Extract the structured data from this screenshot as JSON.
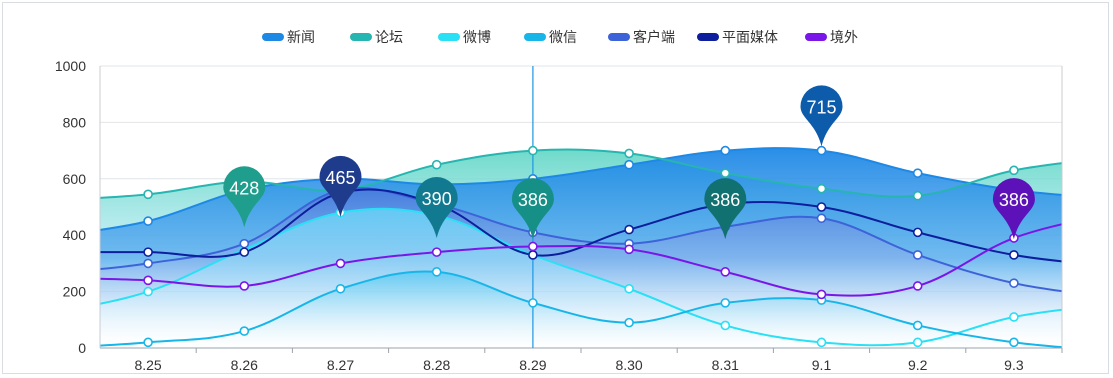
{
  "chart_data": {
    "type": "area",
    "categories": [
      "8.25",
      "8.26",
      "8.27",
      "8.28",
      "8.29",
      "8.30",
      "8.31",
      "9.1",
      "9.2",
      "9.3"
    ],
    "ylim": [
      0,
      1000
    ],
    "yticks": [
      0,
      200,
      400,
      600,
      800,
      1000
    ],
    "grid": true,
    "legend_position": "top-center",
    "highlight_category": "8.29",
    "series": [
      {
        "name": "新闻",
        "color": "#1e88e5",
        "values": [
          450,
          560,
          600,
          580,
          600,
          650,
          700,
          700,
          620,
          560
        ]
      },
      {
        "name": "论坛",
        "color": "#26b5b0",
        "values": [
          545,
          590,
          560,
          650,
          700,
          690,
          620,
          565,
          540,
          630
        ]
      },
      {
        "name": "微博",
        "color": "#29e0f5",
        "values": [
          200,
          350,
          480,
          470,
          330,
          210,
          80,
          20,
          20,
          110
        ]
      },
      {
        "name": "微信",
        "color": "#18b6e8",
        "values": [
          20,
          60,
          210,
          270,
          160,
          90,
          160,
          170,
          80,
          20
        ]
      },
      {
        "name": "客户端",
        "color": "#3d63d8",
        "values": [
          300,
          370,
          560,
          510,
          410,
          370,
          430,
          460,
          330,
          230
        ]
      },
      {
        "name": "平面媒体",
        "color": "#0d1f9c",
        "values": [
          340,
          340,
          550,
          510,
          330,
          420,
          510,
          500,
          410,
          330
        ]
      },
      {
        "name": "境外",
        "color": "#7a16e8",
        "values": [
          240,
          220,
          300,
          340,
          360,
          350,
          270,
          190,
          220,
          390
        ]
      }
    ],
    "markers": [
      {
        "category": "8.26",
        "value": 428,
        "label": "428",
        "color": "#1f9e8e"
      },
      {
        "category": "8.27",
        "value": 465,
        "label": "465",
        "color": "#1f3c8c"
      },
      {
        "category": "8.28",
        "value": 390,
        "label": "390",
        "color": "#117a90"
      },
      {
        "category": "8.29",
        "value": 386,
        "label": "386",
        "color": "#168f86"
      },
      {
        "category": "8.31",
        "value": 386,
        "label": "386",
        "color": "#117070"
      },
      {
        "category": "9.1",
        "value": 715,
        "label": "715",
        "color": "#0d5bab"
      },
      {
        "category": "9.3",
        "value": 386,
        "label": "386",
        "color": "#5c12b8"
      }
    ]
  }
}
